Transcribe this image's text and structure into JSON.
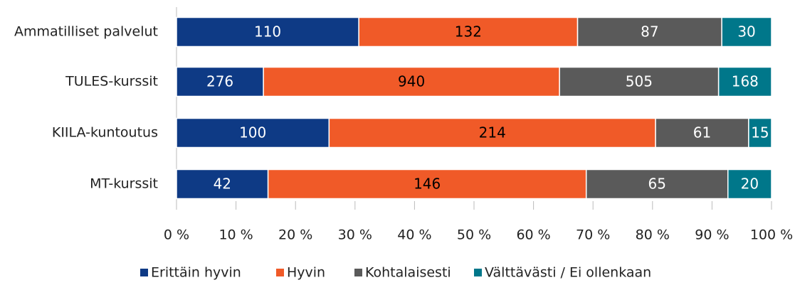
{
  "chart_data": {
    "type": "bar",
    "orientation": "horizontal",
    "stacking": "percent",
    "categories": [
      "Ammatilliset palvelut",
      "TULES-kurssit",
      "KIILA-kuntoutus",
      "MT-kurssit"
    ],
    "series": [
      {
        "name": "Erittäin hyvin",
        "color": "#0e3a85",
        "values": [
          110,
          276,
          100,
          42
        ]
      },
      {
        "name": "Hyvin",
        "color": "#f05a28",
        "values": [
          132,
          940,
          214,
          146
        ]
      },
      {
        "name": "Kohtalaisesti",
        "color": "#5a5a5a",
        "values": [
          87,
          505,
          61,
          65
        ]
      },
      {
        "name": "Välttävästi / Ei ollenkaan",
        "color": "#00778a",
        "values": [
          30,
          168,
          15,
          20
        ]
      }
    ],
    "xlim": [
      0,
      100
    ],
    "xticks": [
      {
        "value": 0,
        "label": "0 %"
      },
      {
        "value": 10,
        "label": "10 %"
      },
      {
        "value": 20,
        "label": "20 %"
      },
      {
        "value": 30,
        "label": "30 %"
      },
      {
        "value": 40,
        "label": "40 %"
      },
      {
        "value": 50,
        "label": "50 %"
      },
      {
        "value": 60,
        "label": "60 %"
      },
      {
        "value": 70,
        "label": "70 %"
      },
      {
        "value": 80,
        "label": "80 %"
      },
      {
        "value": 90,
        "label": "90 %"
      },
      {
        "value": 100,
        "label": "100 %"
      }
    ],
    "legend": "bottom"
  }
}
